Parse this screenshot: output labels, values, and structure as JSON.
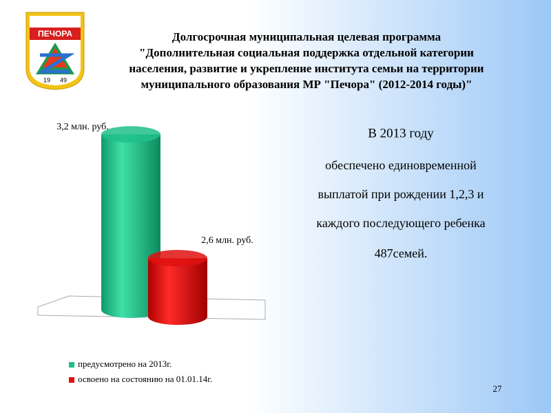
{
  "header": {
    "title": [
      "Долгосрочная муниципальная целевая программа",
      "\"Дополнительная социальная поддержка отдельной категории",
      "населения, развитие и укрепление института семьи на территории",
      "муниципального образования МР \"Печора\" (2012-2014 годы)\""
    ]
  },
  "logo": {
    "name": "ПЕЧОРА",
    "year": [
      "19",
      "49"
    ]
  },
  "chart_data": {
    "type": "bar",
    "series": [
      {
        "name": "предусмотрено на 2013г.",
        "color": "#1fc08a",
        "values": [
          3.2
        ],
        "value_labels": [
          "3,2 млн. руб."
        ]
      },
      {
        "name": "освоено на состоянию на 01.01.14г.",
        "color": "#e01010",
        "values": [
          2.6
        ],
        "value_labels": [
          "2,6 млн. руб."
        ]
      }
    ],
    "ylim": [
      2.3,
      3.3
    ]
  },
  "text": [
    "В 2013 году",
    "обеспечено единовременной",
    "выплатой при рождении 1,2,3 и",
    "каждого последующего ребенка",
    "487семей."
  ],
  "page_number": "27"
}
